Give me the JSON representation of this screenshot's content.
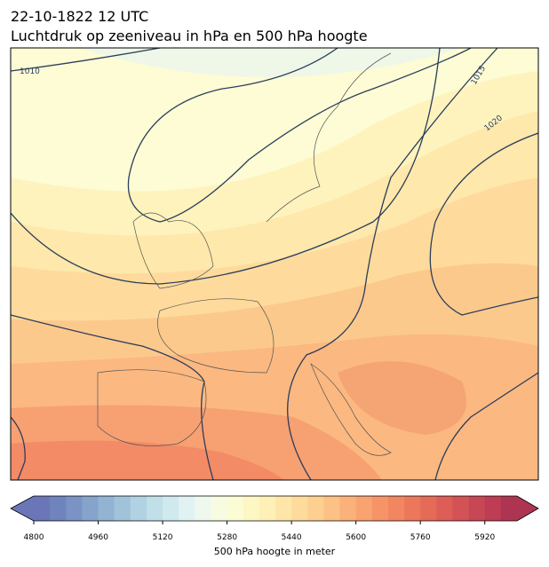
{
  "header": {
    "title": "22-10-1822 12 UTC",
    "subtitle": "Luchtdruk op zeeniveau in hPa en 500 hPa hoogte"
  },
  "map": {
    "isobar_labels": [
      "1010",
      "1015",
      "1020"
    ]
  },
  "colorbar": {
    "label": "500 hPa hoogte in meter",
    "lim": [
      4800,
      6000
    ],
    "ticks": [
      4800,
      4960,
      5120,
      5280,
      5440,
      5600,
      5760,
      5920
    ],
    "colors": [
      "#6a76b8",
      "#6f84bd",
      "#7a93c4",
      "#86a3cb",
      "#93b3d2",
      "#a1c3da",
      "#b0d2e2",
      "#c0dfe9",
      "#d0e9ef",
      "#e0f2f2",
      "#eef8ee",
      "#f6fbe2",
      "#fbfcd3",
      "#fdf7c4",
      "#fef0b6",
      "#fee6a9",
      "#fedb9c",
      "#fdcf90",
      "#fcc184",
      "#fbb27a",
      "#f9a371",
      "#f69468",
      "#f28661",
      "#ec785c",
      "#e56b59",
      "#dd5e57",
      "#d35256",
      "#c84755",
      "#bc3d54",
      "#ae3552"
    ]
  }
}
